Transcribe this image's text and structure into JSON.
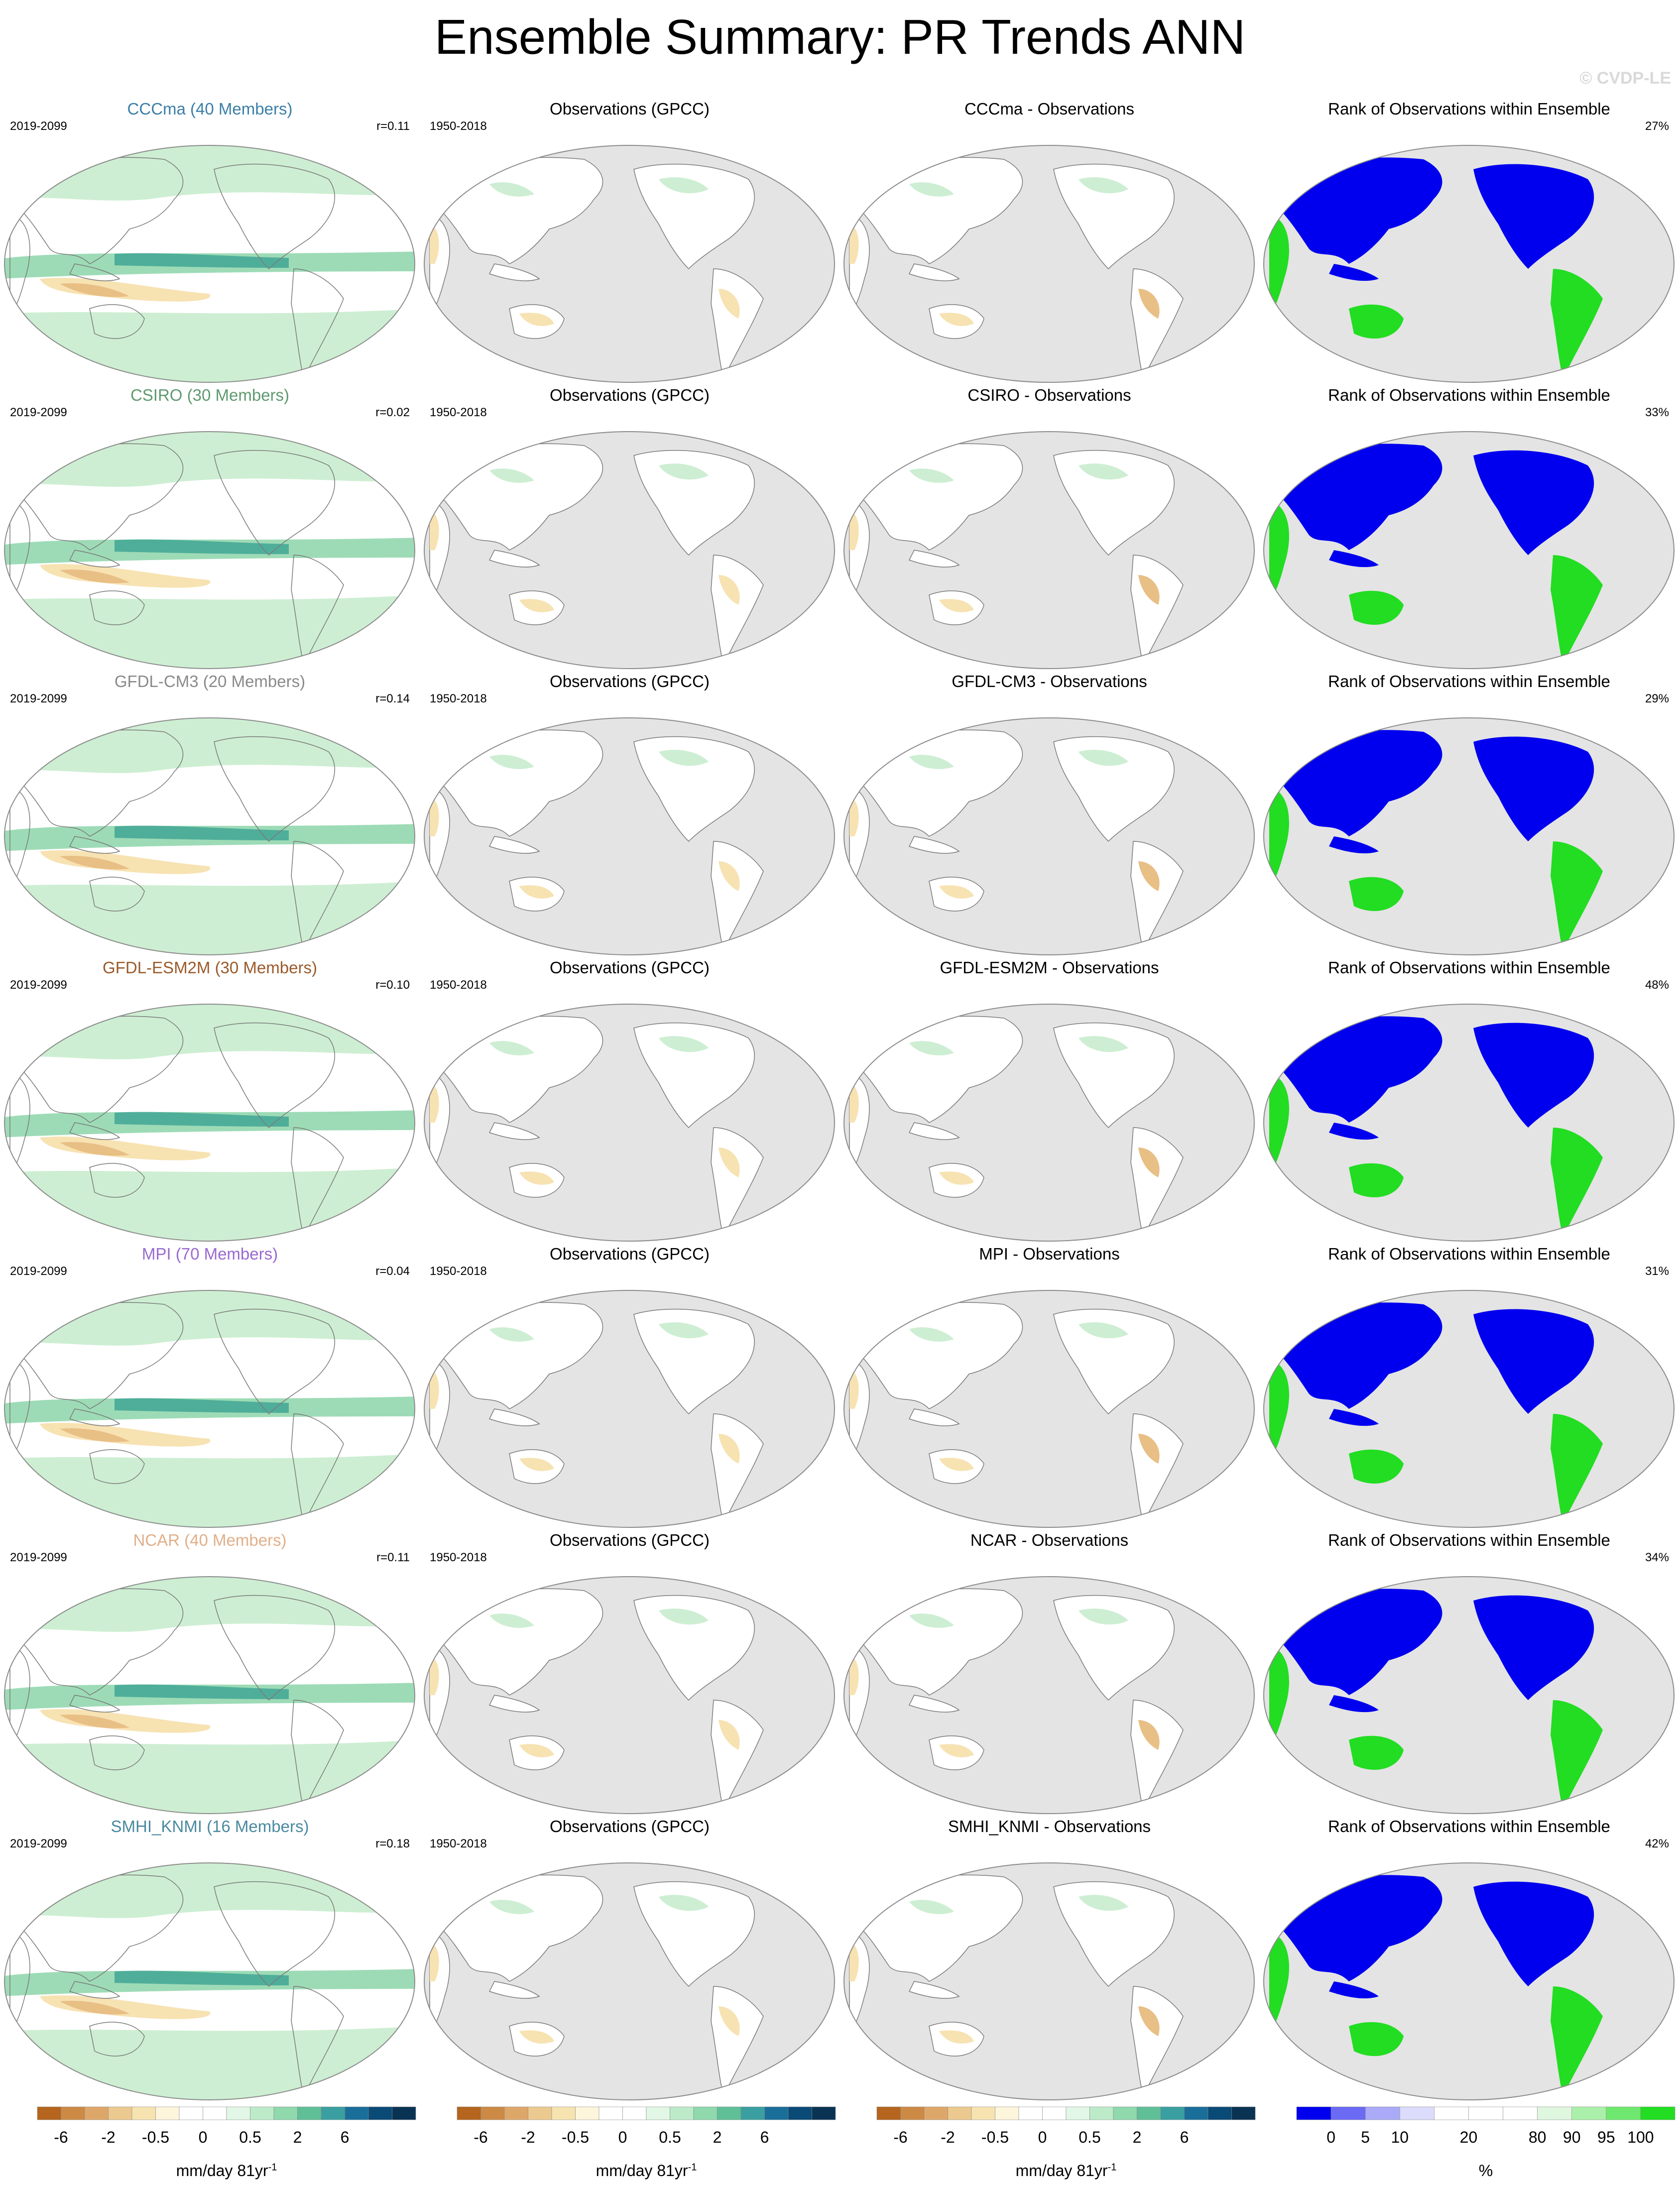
{
  "figure": {
    "title": "Ensemble Summary: PR Trends ANN",
    "watermark": "© CVDP-LE"
  },
  "columns": {
    "obs_title": "Observations (GPCC)",
    "obs_period": "1950-2018",
    "rank_title": "Rank of Observations within Ensemble",
    "model_period": "2019-2099",
    "diff_suffix": " - Observations"
  },
  "rows": [
    {
      "model": "CCCma",
      "model_title": "CCCma (40 Members)",
      "title_color": "#3b7fa8",
      "r": "r=0.11",
      "diff_title": "CCCma - Observations",
      "rank_pct": "27%"
    },
    {
      "model": "CSIRO",
      "model_title": "CSIRO (30 Members)",
      "title_color": "#5f9a6f",
      "r": "r=0.02",
      "diff_title": "CSIRO - Observations",
      "rank_pct": "33%"
    },
    {
      "model": "GFDL-CM3",
      "model_title": "GFDL-CM3 (20 Members)",
      "title_color": "#8a8a8a",
      "r": "r=0.14",
      "diff_title": "GFDL-CM3 - Observations",
      "rank_pct": "29%"
    },
    {
      "model": "GFDL-ESM2M",
      "model_title": "GFDL-ESM2M (30 Members)",
      "title_color": "#9a5a2a",
      "r": "r=0.10",
      "diff_title": "GFDL-ESM2M - Observations",
      "rank_pct": "48%"
    },
    {
      "model": "MPI",
      "model_title": "MPI (70 Members)",
      "title_color": "#9a6ad0",
      "r": "r=0.04",
      "diff_title": "MPI - Observations",
      "rank_pct": "31%"
    },
    {
      "model": "NCAR",
      "model_title": "NCAR (40 Members)",
      "title_color": "#e0b08a",
      "r": "r=0.11",
      "diff_title": "NCAR - Observations",
      "rank_pct": "34%"
    },
    {
      "model": "SMHI_KNMI",
      "model_title": "SMHI_KNMI (16 Members)",
      "title_color": "#4a8aa0",
      "r": "r=0.18",
      "diff_title": "SMHI_KNMI - Observations",
      "rank_pct": "42%"
    }
  ],
  "colorbars": {
    "trend": {
      "colors": [
        "#b5651d",
        "#cd8a45",
        "#dea76a",
        "#ecc98f",
        "#f6e3b0",
        "#fdf6dc",
        "#ffffff",
        "#ffffff",
        "#e2f7e6",
        "#bdebc9",
        "#8fd9ac",
        "#5fbf97",
        "#3a9fa0",
        "#1a6e9a",
        "#0a4a76",
        "#0a3353"
      ],
      "labels": [
        "-6",
        "-2",
        "-0.5",
        "0",
        "0.5",
        "2",
        "6"
      ],
      "unit": "mm/day 81yr",
      "unit_exp": "-1"
    },
    "rank": {
      "colors": [
        "#0000ee",
        "#6a6af5",
        "#aaaaf8",
        "#dcdcfc",
        "#ffffff",
        "#ffffff",
        "#ffffff",
        "#dff7df",
        "#aaf0aa",
        "#6ee86e",
        "#22dd22"
      ],
      "labels": [
        "0",
        "5",
        "10",
        "20",
        "80",
        "90",
        "95",
        "100"
      ],
      "unit": "%"
    }
  },
  "map_colors": {
    "ocean_gray": "#e4e4e4",
    "land_outline": "#7a7a7a",
    "border": "#8c8c8c",
    "wet_light": "#cdeed2",
    "wet_mid": "#9ddbb6",
    "wet_strong": "#4fae9a",
    "wet_deep": "#1f5f8c",
    "dry_light": "#f7e2b2",
    "dry_mid": "#e8bf85",
    "rank_low": "#0000ee",
    "rank_high": "#22dd22"
  }
}
